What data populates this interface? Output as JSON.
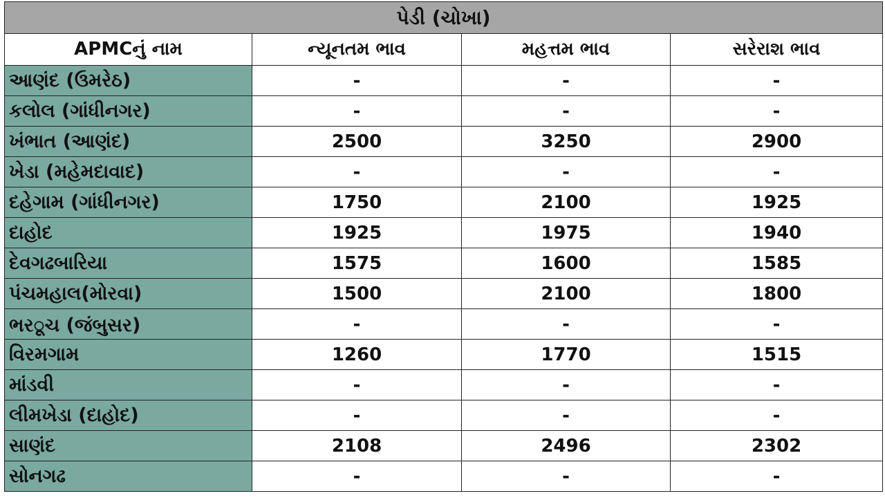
{
  "title": "પેડી (ચોખા)",
  "colors": {
    "title_bg": "#a6a6a6",
    "name_col_bg": "#7aa9a0"
  },
  "headers": [
    "APMCનું નામ",
    "ન્યૂનતમ ભાવ",
    "મહત્તમ ભાવ",
    "સરેરાશ ભાવ"
  ],
  "rows": [
    {
      "name": "આણંદ (ઉમરેઠ)",
      "min": "-",
      "max": "-",
      "avg": "-"
    },
    {
      "name": "કલોલ  (ગાંધીનગર)",
      "min": "-",
      "max": "-",
      "avg": "-"
    },
    {
      "name": "ખંભાત (આણંદ)",
      "min": "2500",
      "max": "3250",
      "avg": "2900"
    },
    {
      "name": "ખેડા (મહેમદાવાદ)",
      "min": "-",
      "max": "-",
      "avg": "-"
    },
    {
      "name": "દહેગામ (ગાંધીનગર)",
      "min": "1750",
      "max": "2100",
      "avg": "1925"
    },
    {
      "name": "દાહોદ",
      "min": "1925",
      "max": "1975",
      "avg": "1940"
    },
    {
      "name": "દેવગઢબારિયા",
      "min": "1575",
      "max": "1600",
      "avg": "1585"
    },
    {
      "name": "પંચમહાલ(મોરવા)",
      "min": "1500",
      "max": "2100",
      "avg": "1800"
    },
    {
      "name": "ભરूચ (જંબુસર)",
      "min": "-",
      "max": "-",
      "avg": "-"
    },
    {
      "name": "વિરમગામ",
      "min": "1260",
      "max": "1770",
      "avg": "1515"
    },
    {
      "name": "માંડવી",
      "min": "-",
      "max": "-",
      "avg": "-"
    },
    {
      "name": "લીમખેડા (દાહોદ)",
      "min": "-",
      "max": "-",
      "avg": "-"
    },
    {
      "name": "સાણંદ",
      "min": "2108",
      "max": "2496",
      "avg": "2302"
    },
    {
      "name": "સોનગઢ",
      "min": "-",
      "max": "-",
      "avg": "-"
    }
  ]
}
